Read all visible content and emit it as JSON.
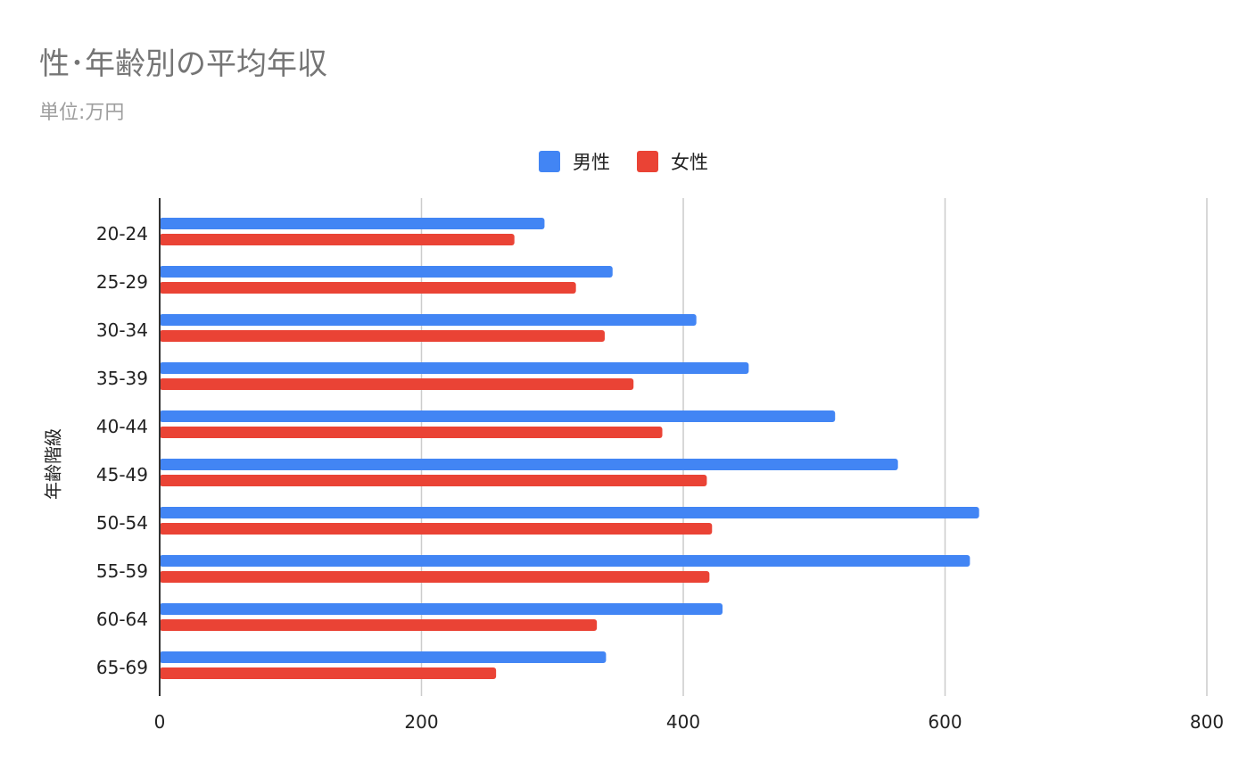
{
  "colors": {
    "male": "#4285f4",
    "female": "#ea4335",
    "grid": "#cccccc",
    "axis": "#333333"
  },
  "chart_data": {
    "type": "bar",
    "orientation": "horizontal",
    "title": "性･年齢別の平均年収",
    "subtitle": "単位:万円",
    "xlabel": "",
    "ylabel": "年齢階級",
    "categories": [
      "20-24",
      "25-29",
      "30-34",
      "35-39",
      "40-44",
      "45-49",
      "50-54",
      "55-59",
      "60-64",
      "65-69"
    ],
    "series": [
      {
        "name": "男性",
        "values": [
          294,
          346,
          410,
          450,
          516,
          564,
          626,
          619,
          430,
          341
        ]
      },
      {
        "name": "女性",
        "values": [
          271,
          318,
          340,
          362,
          384,
          418,
          422,
          420,
          334,
          257
        ]
      }
    ],
    "xlim": [
      0,
      800
    ],
    "xticks": [
      "0",
      "200",
      "400",
      "600",
      "800"
    ],
    "grid": true,
    "legend_position": "top-center"
  }
}
